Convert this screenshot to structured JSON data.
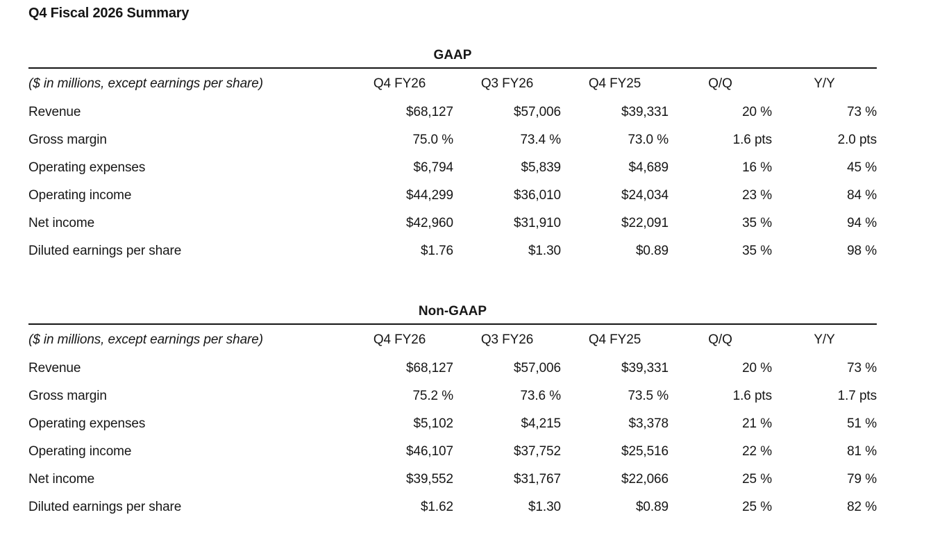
{
  "page_title": "Q4 Fiscal 2026 Summary",
  "colors": {
    "background": "#ffffff",
    "text": "#161616",
    "rule": "#141414"
  },
  "tables": [
    {
      "caption": "GAAP",
      "unit_note": "($ in millions, except earnings per share)",
      "columns": [
        "Q4 FY26",
        "Q3 FY26",
        "Q4 FY25",
        "Q/Q",
        "Y/Y"
      ],
      "rows": [
        {
          "label": "Revenue",
          "values": [
            "$68,127",
            "$57,006",
            "$39,331",
            "20 %",
            "73 %"
          ]
        },
        {
          "label": "Gross margin",
          "values": [
            "75.0 %",
            "73.4 %",
            "73.0 %",
            "1.6 pts",
            "2.0 pts"
          ]
        },
        {
          "label": "Operating expenses",
          "values": [
            "$6,794",
            "$5,839",
            "$4,689",
            "16 %",
            "45 %"
          ]
        },
        {
          "label": "Operating income",
          "values": [
            "$44,299",
            "$36,010",
            "$24,034",
            "23 %",
            "84 %"
          ]
        },
        {
          "label": "Net income",
          "values": [
            "$42,960",
            "$31,910",
            "$22,091",
            "35 %",
            "94 %"
          ]
        },
        {
          "label": "Diluted earnings per share",
          "values": [
            "$1.76",
            "$1.30",
            "$0.89",
            "35 %",
            "98 %"
          ]
        }
      ]
    },
    {
      "caption": "Non-GAAP",
      "unit_note": "($ in millions, except earnings per share)",
      "columns": [
        "Q4 FY26",
        "Q3 FY26",
        "Q4 FY25",
        "Q/Q",
        "Y/Y"
      ],
      "rows": [
        {
          "label": "Revenue",
          "values": [
            "$68,127",
            "$57,006",
            "$39,331",
            "20 %",
            "73 %"
          ]
        },
        {
          "label": "Gross margin",
          "values": [
            "75.2 %",
            "73.6 %",
            "73.5 %",
            "1.6 pts",
            "1.7 pts"
          ]
        },
        {
          "label": "Operating expenses",
          "values": [
            "$5,102",
            "$4,215",
            "$3,378",
            "21 %",
            "51 %"
          ]
        },
        {
          "label": "Operating income",
          "values": [
            "$46,107",
            "$37,752",
            "$25,516",
            "22 %",
            "81 %"
          ]
        },
        {
          "label": "Net income",
          "values": [
            "$39,552",
            "$31,767",
            "$22,066",
            "25 %",
            "79 %"
          ]
        },
        {
          "label": "Diluted earnings per share",
          "values": [
            "$1.62",
            "$1.30",
            "$0.89",
            "25 %",
            "82 %"
          ]
        }
      ]
    }
  ]
}
